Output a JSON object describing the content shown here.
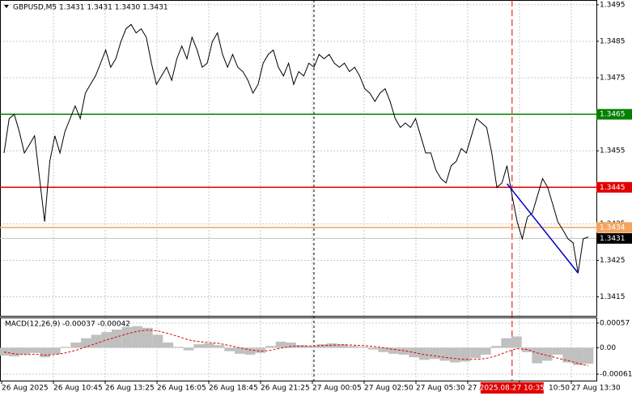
{
  "chart_data": [
    {
      "type": "line",
      "title": "GBPUSD,M5  1.3431 1.3431 1.3430 1.3431",
      "color": "#000000",
      "values": [
        1.34544,
        1.34638,
        1.3465,
        1.34603,
        1.34544,
        1.34567,
        1.34591,
        1.34474,
        1.34356,
        1.34521,
        1.34591,
        1.34544,
        1.34603,
        1.34638,
        1.34673,
        1.34638,
        1.34708,
        1.34732,
        1.34755,
        1.3479,
        1.34826,
        1.34779,
        1.34802,
        1.34849,
        1.34884,
        1.34896,
        1.34873,
        1.34884,
        1.34861,
        1.3479,
        1.34732,
        1.34755,
        1.34779,
        1.34743,
        1.34802,
        1.34837,
        1.34802,
        1.34861,
        1.34826,
        1.34779,
        1.3479,
        1.34849,
        1.34873,
        1.34814,
        1.34779,
        1.34814,
        1.34779,
        1.34767,
        1.34743,
        1.34708,
        1.34732,
        1.3479,
        1.34814,
        1.34826,
        1.34779,
        1.34755,
        1.3479,
        1.34732,
        1.34767,
        1.34755,
        1.3479,
        1.34779,
        1.34814,
        1.34802,
        1.34814,
        1.3479,
        1.34779,
        1.3479,
        1.34767,
        1.34779,
        1.34755,
        1.3472,
        1.34708,
        1.34685,
        1.34708,
        1.3472,
        1.34685,
        1.34638,
        1.34614,
        1.34626,
        1.34614,
        1.34638,
        1.34591,
        1.34544,
        1.34544,
        1.34497,
        1.34474,
        1.34462,
        1.34509,
        1.34521,
        1.34556,
        1.34544,
        1.34591,
        1.34638,
        1.34626,
        1.34614,
        1.34544,
        1.3445,
        1.34462,
        1.34509,
        1.34427,
        1.34356,
        1.34309,
        1.34368,
        1.3438,
        1.34427,
        1.34474,
        1.3445,
        1.34403,
        1.34356,
        1.34333,
        1.34309,
        1.34298,
        1.34215,
        1.34309,
        1.34314
      ],
      "ylim": [
        1.34098,
        1.34963
      ],
      "yticks": [
        1.3495,
        1.3485,
        1.3475,
        1.3455,
        1.3435,
        1.3425,
        1.3415
      ],
      "grid": true,
      "levels": [
        {
          "value": 1.3465,
          "color": "#008000",
          "label_color": "#008000"
        },
        {
          "value": 1.3445,
          "color": "#e00000",
          "label_color": "#e00000"
        },
        {
          "value": 1.3434,
          "color": "#f4a460",
          "label_color": "#f4a460"
        },
        {
          "value": 1.3431,
          "color": "#c0c0c0",
          "label_color": "#000000"
        }
      ],
      "trend_line": {
        "color": "#0000cc",
        "start_index": 99,
        "end_index": 113,
        "values": [
          1.3446,
          1.34215
        ]
      },
      "markers": [
        {
          "index": 61,
          "color": "#000000"
        },
        {
          "index": 100,
          "color": "#e00000"
        }
      ],
      "x_labels": [
        "26 Aug 2025",
        "26 Aug 10:45",
        "26 Aug 13:25",
        "26 Aug 16:05",
        "26 Aug 18:45",
        "26 Aug 21:25",
        "27 Aug 00:05",
        "27 Aug 02:50",
        "27 Aug 05:30",
        "27 A",
        "10:50",
        "27 Aug 13:30"
      ],
      "highlight_label": "2025.08.27 10:35"
    },
    {
      "type": "macd",
      "title": "MACD(12,26,9) -0.00037 -0.00042",
      "histogram": {
        "color": "#c0c0c0",
        "values": [
          -0.00018,
          -0.0002,
          -0.00015,
          -0.00012,
          -0.00022,
          -0.00015,
          2e-05,
          0.00012,
          0.00022,
          0.0003,
          0.00036,
          0.00042,
          0.00048,
          0.0005,
          0.00046,
          0.0003,
          0.00012,
          2e-05,
          -6e-05,
          8e-05,
          0.0001,
          6e-05,
          -8e-05,
          -0.00014,
          -0.00016,
          -0.00012,
          4e-05,
          0.00014,
          0.00012,
          6e-05,
          4e-05,
          8e-05,
          0.0001,
          8e-05,
          4e-05,
          2e-05,
          -4e-05,
          -0.0001,
          -0.00014,
          -0.00016,
          -0.00022,
          -0.00028,
          -0.00026,
          -0.0003,
          -0.00034,
          -0.00032,
          -0.00024,
          -0.00016,
          4e-05,
          0.00022,
          0.00026,
          -0.0001,
          -0.00036,
          -0.0003,
          -0.00016,
          -0.00034,
          -0.0004,
          -0.00037
        ]
      },
      "signal": {
        "color": "#e00000",
        "values": [
          -0.0001,
          -0.00014,
          -0.00016,
          -0.00015,
          -0.00017,
          -0.00016,
          -0.00012,
          -6e-05,
          2e-05,
          0.0001,
          0.00018,
          0.00025,
          0.00032,
          0.00038,
          0.00041,
          0.00039,
          0.00033,
          0.00026,
          0.00018,
          0.00014,
          0.00012,
          0.0001,
          5e-05,
          0,
          -5e-05,
          -8e-05,
          -6e-05,
          -1e-05,
          3e-05,
          4e-05,
          4e-05,
          5e-05,
          6e-05,
          7e-05,
          6e-05,
          5e-05,
          3e-05,
          0,
          -4e-05,
          -7e-05,
          -0.00011,
          -0.00016,
          -0.00019,
          -0.00022,
          -0.00025,
          -0.00027,
          -0.00027,
          -0.00025,
          -0.00019,
          -0.0001,
          -2e-05,
          -4e-05,
          -0.00012,
          -0.00018,
          -0.00024,
          -0.0003,
          -0.00036,
          -0.00042
        ]
      },
      "ylim": [
        -0.00076,
        0.0007
      ],
      "yticks": [
        0.00057,
        {
          "value": 0,
          "label": "0.00"
        },
        -0.00061
      ]
    }
  ]
}
